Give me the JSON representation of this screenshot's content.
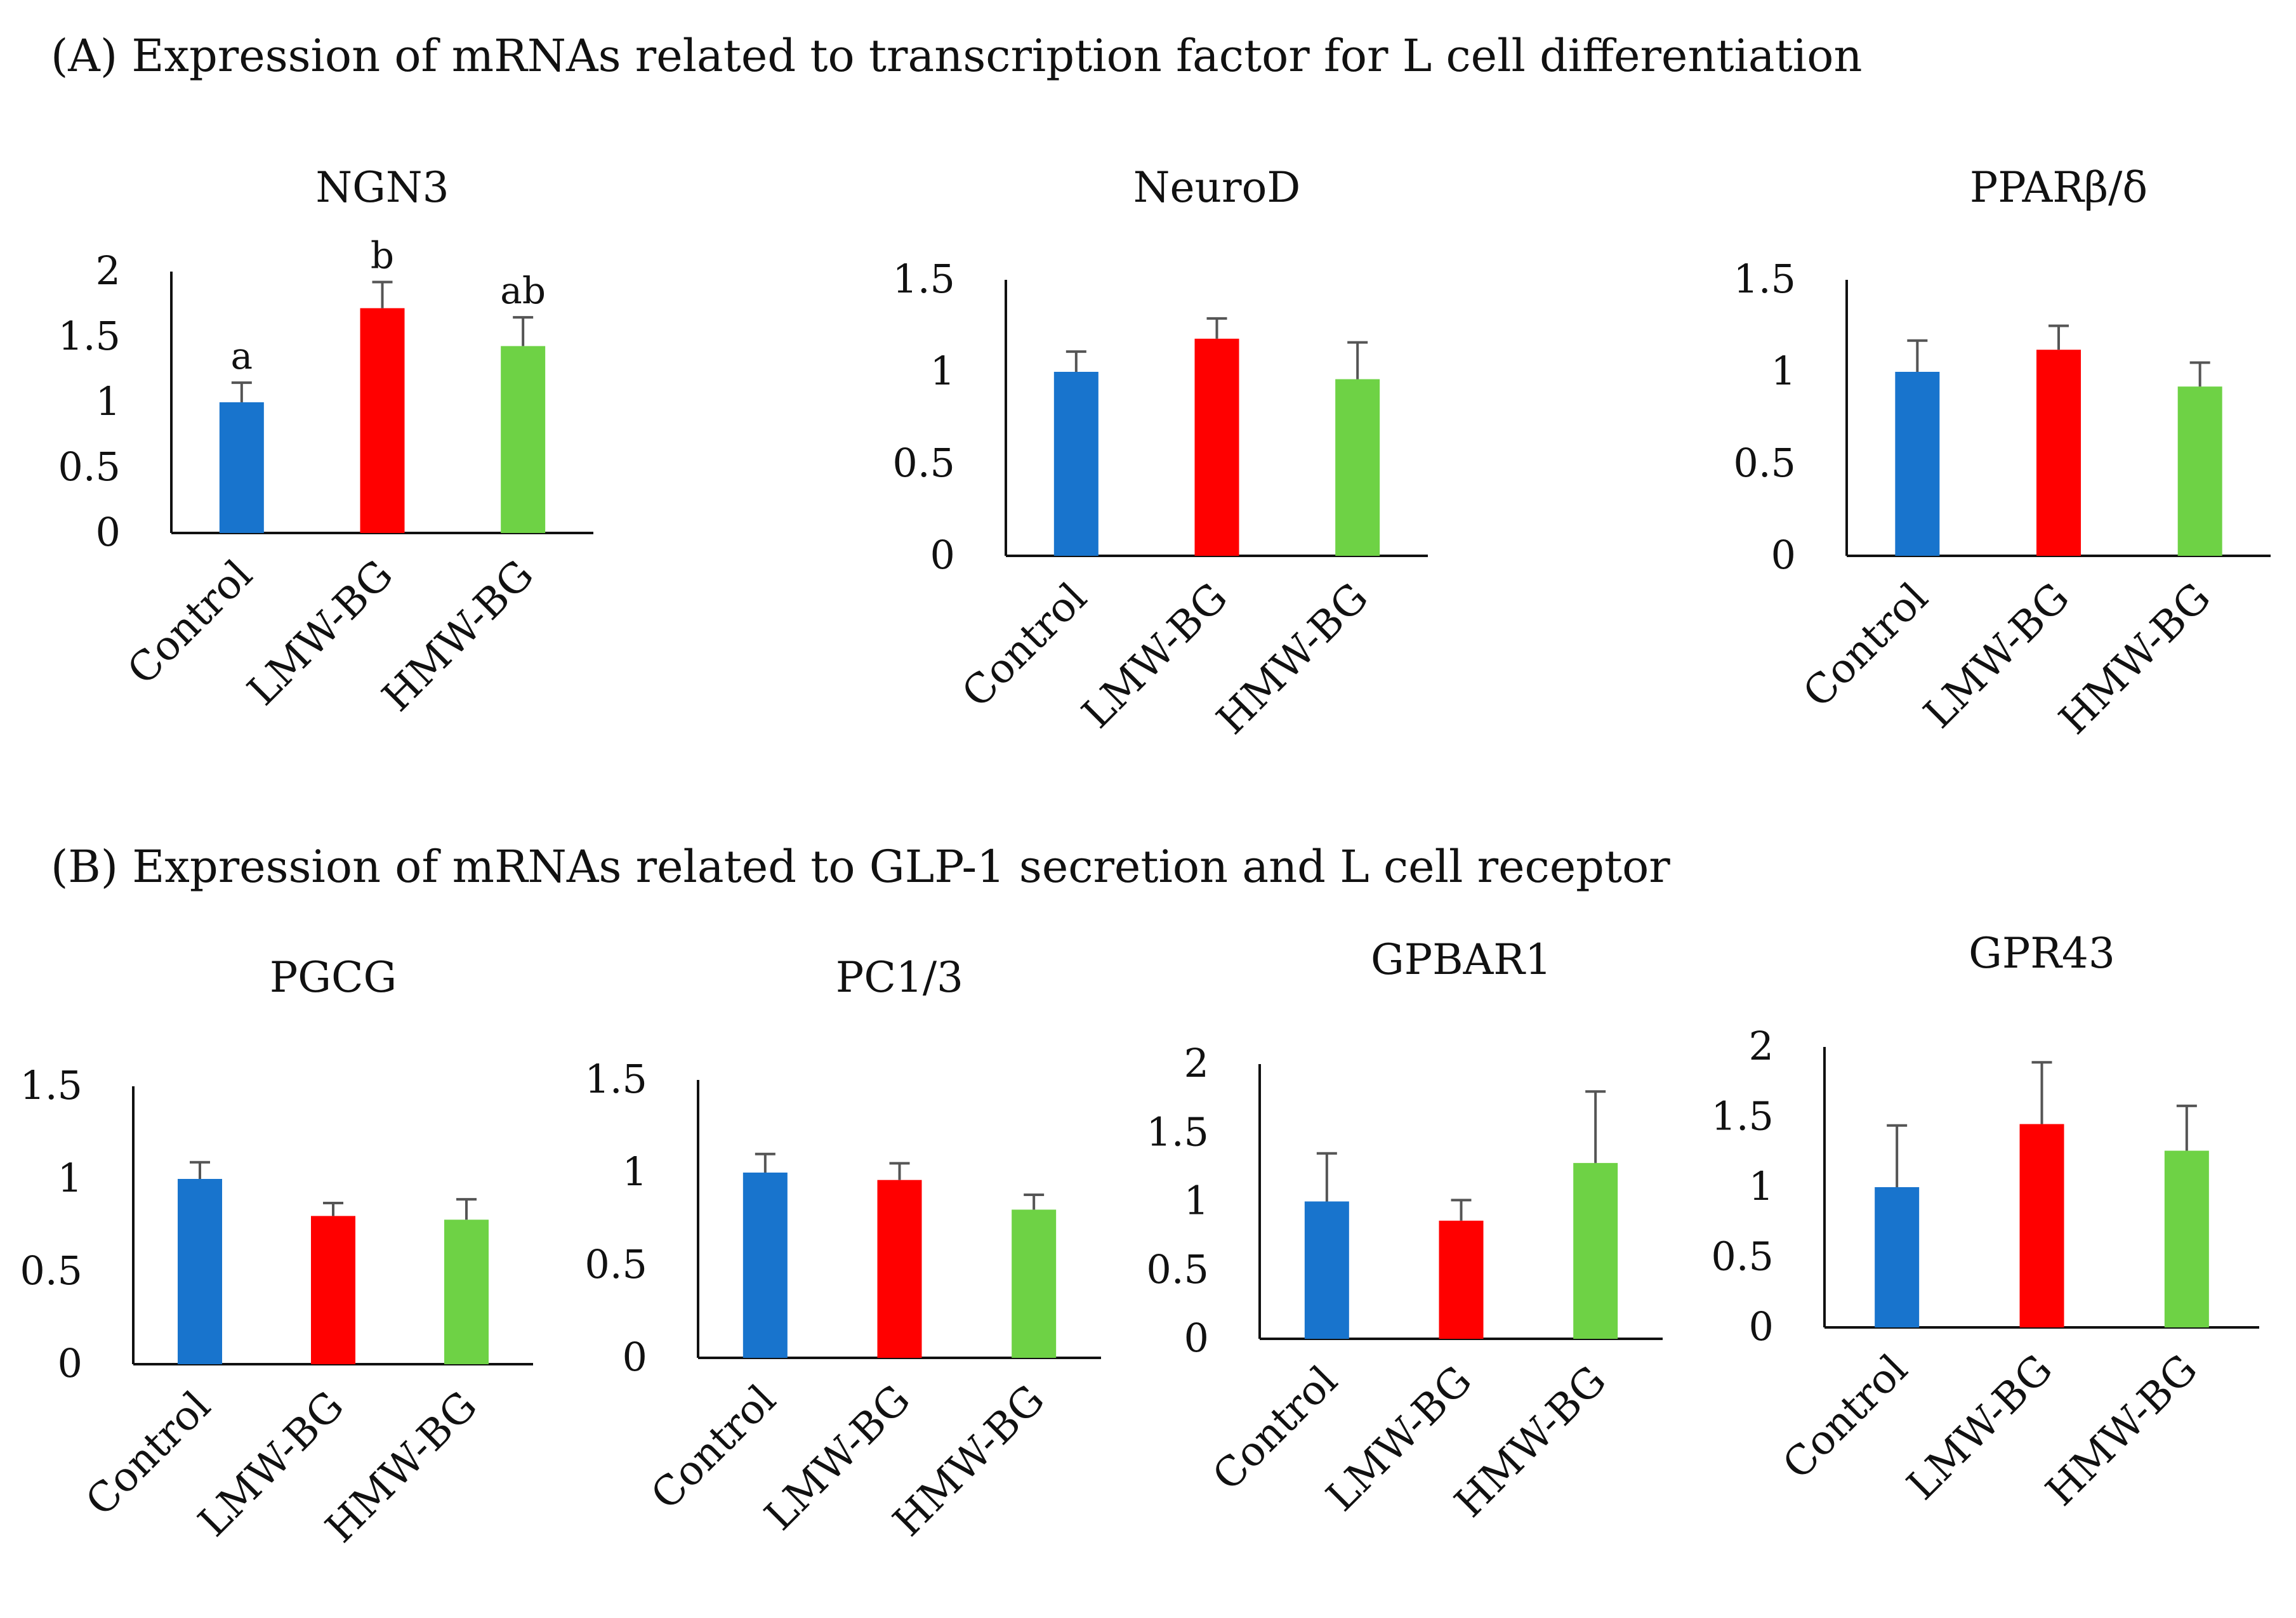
{
  "sections": [
    {
      "label": "(A) Expression of mRNAs related to transcription factor for L cell differentiation"
    },
    {
      "label": "(B) Expression of mRNAs related to GLP-1 secretion and L cell receptor"
    }
  ],
  "colors": {
    "Control": "#1874cd",
    "LMW-BG": "#ff0000",
    "HMW-BG": "#6ed245"
  },
  "chart_data": [
    {
      "type": "bar",
      "title": "NGN3",
      "categories": [
        "Control",
        "LMW-BG",
        "HMW-BG"
      ],
      "values": [
        1.0,
        1.72,
        1.43
      ],
      "errors": [
        0.15,
        0.2,
        0.22
      ],
      "ylim": [
        0,
        2
      ],
      "yticks": [
        "0",
        "0.5",
        "1",
        "1.5",
        "2"
      ],
      "significance": [
        "a",
        "b",
        "ab"
      ]
    },
    {
      "type": "bar",
      "title": "NeuroD",
      "categories": [
        "Control",
        "LMW-BG",
        "HMW-BG"
      ],
      "values": [
        1.0,
        1.18,
        0.96
      ],
      "errors": [
        0.11,
        0.11,
        0.2
      ],
      "ylim": [
        0,
        1.5
      ],
      "yticks": [
        "0",
        "0.5",
        "1",
        "1.5"
      ]
    },
    {
      "type": "bar",
      "title": "PPARβ/δ",
      "categories": [
        "Control",
        "LMW-BG",
        "HMW-BG"
      ],
      "values": [
        1.0,
        1.12,
        0.92
      ],
      "errors": [
        0.17,
        0.13,
        0.13
      ],
      "ylim": [
        0,
        1.5
      ],
      "yticks": [
        "0",
        "0.5",
        "1",
        "1.5"
      ]
    },
    {
      "type": "bar",
      "title": "PGCG",
      "categories": [
        "Control",
        "LMW-BG",
        "HMW-BG"
      ],
      "values": [
        1.0,
        0.8,
        0.78
      ],
      "errors": [
        0.09,
        0.07,
        0.11
      ],
      "ylim": [
        0,
        1.5
      ],
      "yticks": [
        "0",
        "0.5",
        "1",
        "1.5"
      ]
    },
    {
      "type": "bar",
      "title": "PC1/3",
      "categories": [
        "Control",
        "LMW-BG",
        "HMW-BG"
      ],
      "values": [
        1.0,
        0.96,
        0.8
      ],
      "errors": [
        0.1,
        0.09,
        0.08
      ],
      "ylim": [
        0,
        1.5
      ],
      "yticks": [
        "0",
        "0.5",
        "1",
        "1.5"
      ]
    },
    {
      "type": "bar",
      "title": "GPBAR1",
      "categories": [
        "Control",
        "LMW-BG",
        "HMW-BG"
      ],
      "values": [
        1.0,
        0.86,
        1.28
      ],
      "errors": [
        0.35,
        0.15,
        0.52
      ],
      "ylim": [
        0,
        2
      ],
      "yticks": [
        "0",
        "0.5",
        "1",
        "1.5",
        "2"
      ]
    },
    {
      "type": "bar",
      "title": "GPR43",
      "categories": [
        "Control",
        "LMW-BG",
        "HMW-BG"
      ],
      "values": [
        1.0,
        1.45,
        1.26
      ],
      "errors": [
        0.44,
        0.44,
        0.32
      ],
      "ylim": [
        0,
        2
      ],
      "yticks": [
        "0",
        "0.5",
        "1",
        "1.5",
        "2"
      ]
    }
  ]
}
